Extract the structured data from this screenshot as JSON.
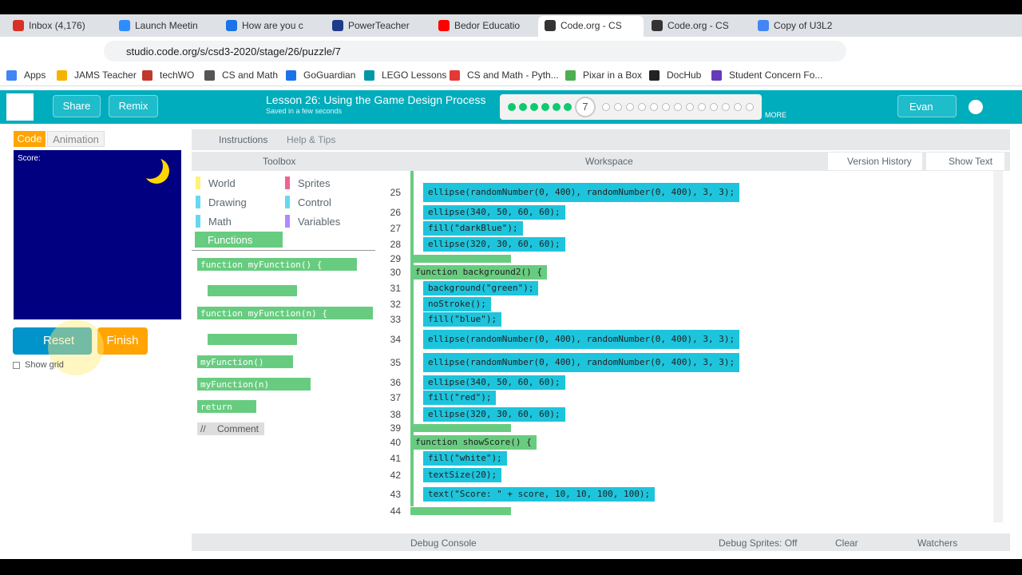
{
  "browser": {
    "tabs": [
      "Inbox (4,176)",
      "Launch Meetin",
      "How are you c",
      "PowerTeacher",
      "Bedor Educatio",
      "Code.org - CS",
      "Code.org - CS",
      "Copy of U3L2"
    ],
    "url": "studio.code.org/s/csd3-2020/stage/26/puzzle/7",
    "bookmarks": [
      "Apps",
      "JAMS Teacher",
      "techWO",
      "CS and Math",
      "GoGuardian",
      "LEGO Lessons",
      "CS and Math - Pyth...",
      "Pixar in a Box",
      "DocHub",
      "Student Concern Fo..."
    ]
  },
  "header": {
    "share": "Share",
    "remix": "Remix",
    "title": "Lesson 26: Using the Game Design Process",
    "saved": "Saved in a few seconds",
    "level": "7",
    "more": "MORE",
    "user": "Evan"
  },
  "left": {
    "tabs": [
      "Code",
      "Animation"
    ],
    "canvas_text": "Score:",
    "reset": "Reset",
    "finish": "Finish",
    "show_grid": "Show grid"
  },
  "instructions": {
    "tabs": [
      "Instructions",
      "Help & Tips"
    ]
  },
  "toolbox": {
    "title": "Toolbox",
    "categories": [
      "World",
      "Sprites",
      "Drawing",
      "Control",
      "Math",
      "Variables",
      "Functions"
    ],
    "blocks": [
      "function myFunction() {",
      "function myFunction(n) {",
      "myFunction()",
      "myFunction(n)",
      "return",
      "//",
      "Comment"
    ]
  },
  "workspace": {
    "title": "Workspace",
    "version_history": "Version History",
    "show_text": "Show Text",
    "lines": [
      {
        "num": 25,
        "kind": "call",
        "text": "ellipse(randomNumber(0, 400), randomNumber(0, 400), 3, 3);"
      },
      {
        "num": 26,
        "kind": "call",
        "text": "ellipse(340, 50, 60, 60);"
      },
      {
        "num": 27,
        "kind": "call",
        "text": "fill(\"darkBlue\");"
      },
      {
        "num": 28,
        "kind": "call",
        "text": "ellipse(320, 30, 60, 60);"
      },
      {
        "num": 29,
        "kind": "end"
      },
      {
        "num": 30,
        "kind": "func",
        "text": "function background2() {"
      },
      {
        "num": 31,
        "kind": "call",
        "text": "background(\"green\");"
      },
      {
        "num": 32,
        "kind": "call",
        "text": "noStroke();"
      },
      {
        "num": 33,
        "kind": "call",
        "text": "fill(\"blue\");"
      },
      {
        "num": 34,
        "kind": "call",
        "text": "ellipse(randomNumber(0, 400), randomNumber(0, 400), 3, 3);"
      },
      {
        "num": 35,
        "kind": "call",
        "text": "ellipse(randomNumber(0, 400), randomNumber(0, 400), 3, 3);"
      },
      {
        "num": 36,
        "kind": "call",
        "text": "ellipse(340, 50, 60, 60);"
      },
      {
        "num": 37,
        "kind": "call",
        "text": "fill(\"red\");"
      },
      {
        "num": 38,
        "kind": "call",
        "text": "ellipse(320, 30, 60, 60);"
      },
      {
        "num": 39,
        "kind": "end"
      },
      {
        "num": 40,
        "kind": "func",
        "text": "function showScore() {"
      },
      {
        "num": 41,
        "kind": "call",
        "text": "fill(\"white\");"
      },
      {
        "num": 42,
        "kind": "call",
        "text": "textSize(20);"
      },
      {
        "num": 43,
        "kind": "call",
        "text": "text(\"Score: \" + score, 10, 10, 100, 100);"
      },
      {
        "num": 44,
        "kind": "end"
      }
    ]
  },
  "footer": {
    "debug_console": "Debug Console",
    "debug_sprites": "Debug Sprites: Off",
    "clear": "Clear",
    "watchers": "Watchers"
  }
}
